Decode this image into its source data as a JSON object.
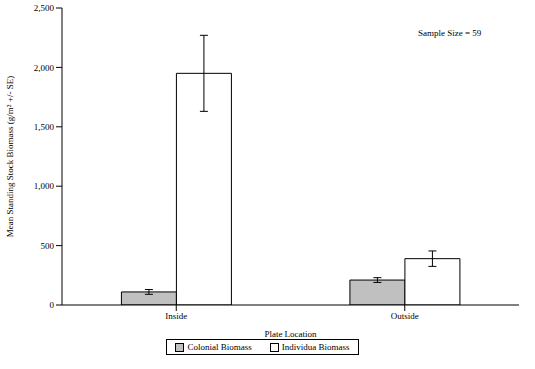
{
  "chart_data": {
    "type": "bar",
    "categories": [
      "Inside",
      "Outside"
    ],
    "series": [
      {
        "name": "Colonial Biomass",
        "color": "#c0c0c0",
        "values": [
          110,
          210
        ],
        "errors": [
          20,
          20
        ]
      },
      {
        "name": "Individua Biomass",
        "color": "#ffffff",
        "values": [
          1950,
          390
        ],
        "errors": [
          320,
          65
        ]
      }
    ],
    "xlabel": "Plate Location",
    "ylabel": "Mean Standing Stock Biomass (g/m² +/- SE)",
    "annotation": "Sample Size = 59",
    "ylim": [
      0,
      2500
    ],
    "yticks": [
      0,
      500,
      {
        "value": 1000,
        "label": "1,000"
      },
      {
        "value": 1500,
        "label": "1,500"
      },
      {
        "value": 2000,
        "label": "2,000"
      },
      {
        "value": 2500,
        "label": "2,500"
      }
    ],
    "grid": false,
    "legend": "bottom"
  }
}
